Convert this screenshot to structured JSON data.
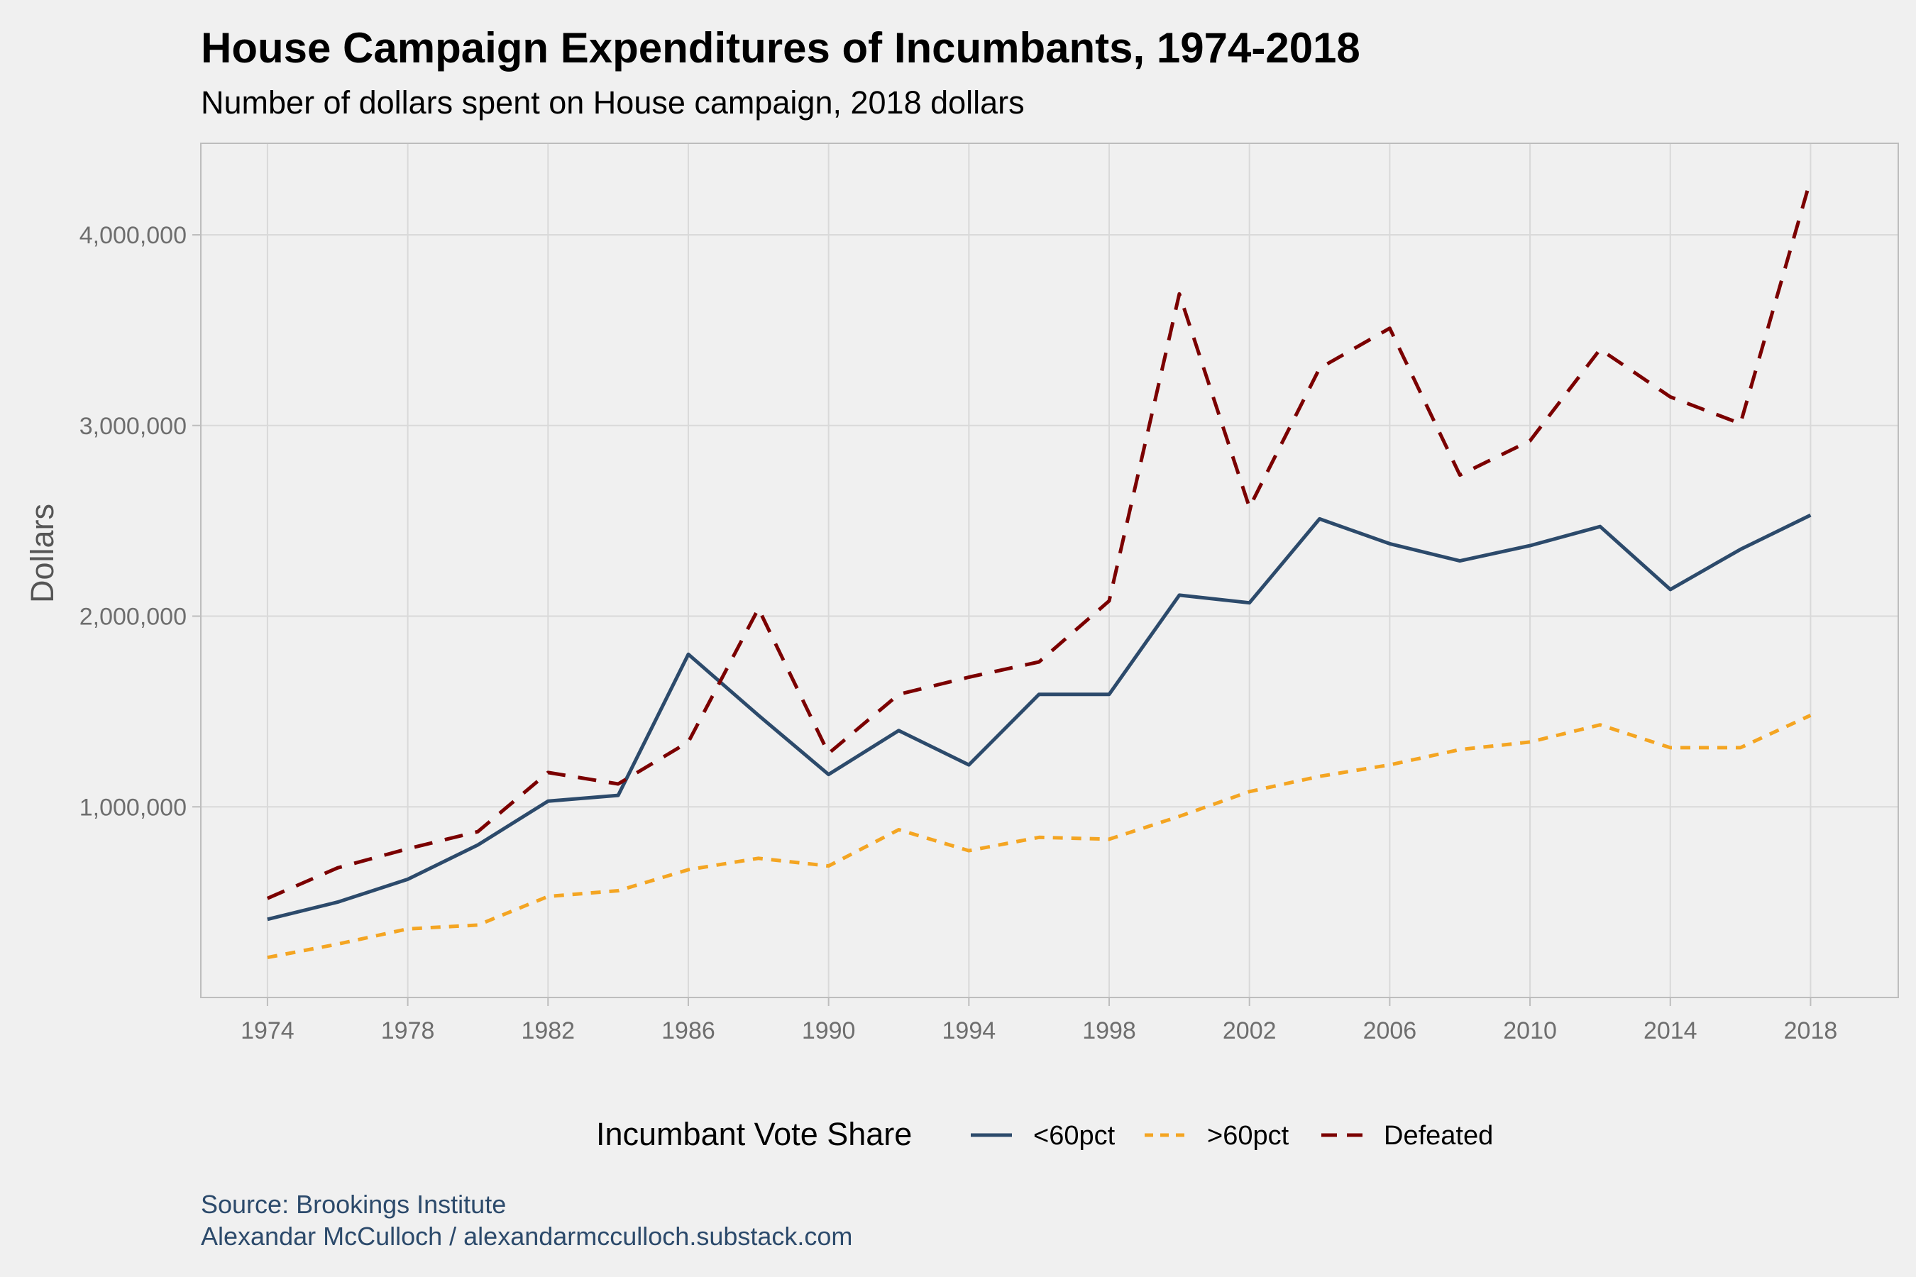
{
  "chart_data": {
    "type": "line",
    "title": "House Campaign Expenditures of Incumbants, 1974-2018",
    "subtitle": "Number of dollars spent on House campaign, 2018 dollars",
    "xlabel": "",
    "ylabel": "Dollars",
    "x": [
      1974,
      1976,
      1978,
      1980,
      1982,
      1984,
      1986,
      1988,
      1990,
      1992,
      1994,
      1996,
      1998,
      2000,
      2002,
      2004,
      2006,
      2008,
      2010,
      2012,
      2014,
      2016,
      2018
    ],
    "x_ticks": [
      "1974",
      "1978",
      "1982",
      "1986",
      "1990",
      "1994",
      "1998",
      "2002",
      "2006",
      "2010",
      "2014",
      "2018"
    ],
    "y_ticks": [
      "1,000,000",
      "2,000,000",
      "3,000,000",
      "4,000,000"
    ],
    "y_tick_values": [
      1000000,
      2000000,
      3000000,
      4000000
    ],
    "xlim": [
      1972.1,
      2020.5
    ],
    "ylim": [
      0,
      4480000
    ],
    "grid": true,
    "legend_title": "Incumbant Vote Share",
    "legend_position": "bottom",
    "series": [
      {
        "name": "<60pct",
        "color": "#2c4a6b",
        "dash": "solid",
        "values": [
          410000,
          500000,
          620000,
          800000,
          1030000,
          1060000,
          1800000,
          1480000,
          1170000,
          1400000,
          1220000,
          1590000,
          1590000,
          2110000,
          2070000,
          2510000,
          2380000,
          2290000,
          2370000,
          2470000,
          2140000,
          2350000,
          2530000
        ]
      },
      {
        "name": ">60pct",
        "color": "#f4a522",
        "dash": "dotted",
        "values": [
          210000,
          280000,
          360000,
          380000,
          530000,
          560000,
          670000,
          730000,
          690000,
          880000,
          770000,
          840000,
          830000,
          950000,
          1080000,
          1160000,
          1220000,
          1300000,
          1340000,
          1430000,
          1310000,
          1310000,
          1480000
        ]
      },
      {
        "name": "Defeated",
        "color": "#7b0000",
        "dash": "dashed",
        "values": [
          520000,
          680000,
          780000,
          870000,
          1180000,
          1120000,
          1340000,
          2040000,
          1280000,
          1590000,
          1680000,
          1760000,
          2080000,
          3690000,
          2570000,
          3300000,
          3510000,
          2740000,
          2920000,
          3400000,
          3150000,
          3010000,
          4290000
        ]
      }
    ]
  },
  "caption": {
    "source": "Source: Brookings Institute",
    "author": "Alexandar McCulloch / alexandarmcculloch.substack.com"
  }
}
